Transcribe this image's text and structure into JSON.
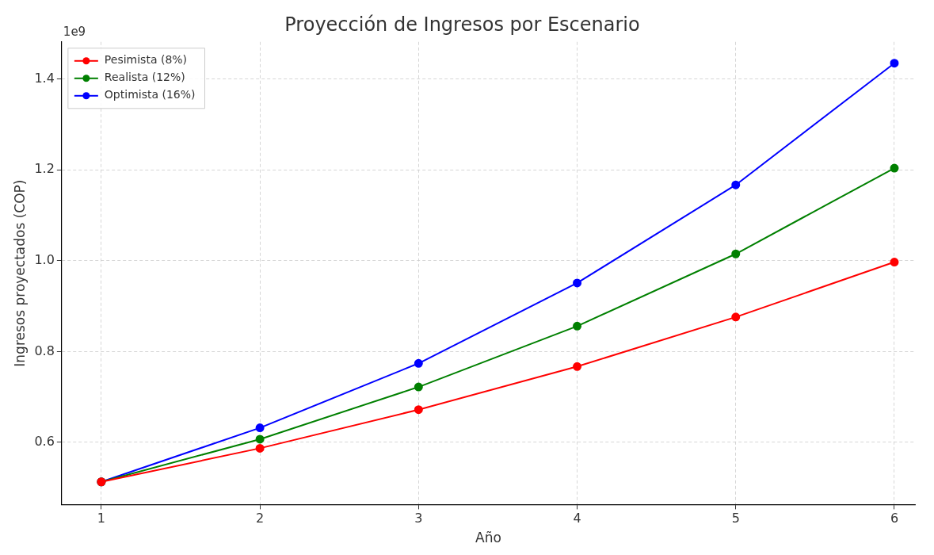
{
  "chart_data": {
    "type": "line",
    "title": "Proyección de Ingresos por Escenario",
    "xlabel": "Año",
    "ylabel": "Ingresos proyectados (COP)",
    "annotations": [
      "1e9"
    ],
    "x": [
      1,
      2,
      3,
      4,
      5,
      6
    ],
    "series": [
      {
        "name": "Pesimista (8%)",
        "color": "#ff0000",
        "values": [
          0.513,
          0.587,
          0.672,
          0.767,
          0.876,
          0.997
        ]
      },
      {
        "name": "Realista (12%)",
        "color": "#008000",
        "values": [
          0.513,
          0.607,
          0.722,
          0.856,
          1.015,
          1.204
        ]
      },
      {
        "name": "Optimista (16%)",
        "color": "#0000ff",
        "values": [
          0.513,
          0.632,
          0.774,
          0.951,
          1.167,
          1.435
        ]
      }
    ],
    "xlim": [
      0.75,
      6.13
    ],
    "xticks": [
      1,
      2,
      3,
      4,
      5,
      6
    ],
    "ylim": [
      0.463,
      1.482
    ],
    "yticks": [
      {
        "value": 0.6,
        "label": "0.6"
      },
      {
        "value": 0.8,
        "label": "0.8"
      },
      {
        "value": 1.0,
        "label": "1.0"
      },
      {
        "value": 1.2,
        "label": "1.2"
      },
      {
        "value": 1.4,
        "label": "1.4"
      }
    ],
    "grid": true,
    "legend": "top left",
    "marker": "circle",
    "line_style": "solid"
  }
}
